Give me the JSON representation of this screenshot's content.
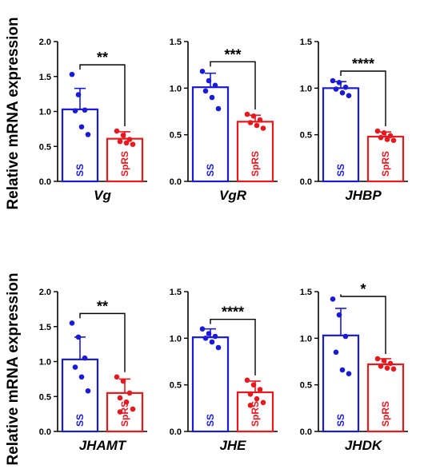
{
  "figure": {
    "ylabel": "Relative mRNA expression",
    "group_colors": {
      "SS": "#1a1adb",
      "SpRS": "#e8181f"
    }
  },
  "chart_data": [
    {
      "type": "bar",
      "title": "Vg",
      "ylim": [
        0,
        2.0
      ],
      "yticks": [
        0.0,
        0.5,
        1.0,
        1.5,
        2.0
      ],
      "ytick_labels": [
        "0.0",
        "0.5",
        "1.0",
        "1.5",
        "2.0"
      ],
      "categories": [
        "SS",
        "SpRS"
      ],
      "values": [
        1.03,
        0.61
      ],
      "errors": [
        0.3,
        0.1
      ],
      "points": [
        [
          1.53,
          1.24,
          1.02,
          1.01,
          0.78,
          0.67
        ],
        [
          0.72,
          0.66,
          0.6,
          0.57,
          0.55,
          0.53
        ]
      ],
      "significance": "**"
    },
    {
      "type": "bar",
      "title": "VgR",
      "ylim": [
        0,
        1.5
      ],
      "yticks": [
        0.0,
        0.5,
        1.0,
        1.5
      ],
      "ytick_labels": [
        "0.0",
        "0.5",
        "1.0",
        "1.5"
      ],
      "categories": [
        "SS",
        "SpRS"
      ],
      "values": [
        1.01,
        0.64
      ],
      "errors": [
        0.15,
        0.07
      ],
      "points": [
        [
          1.18,
          1.08,
          1.03,
          0.97,
          0.9,
          0.78
        ],
        [
          0.72,
          0.7,
          0.66,
          0.63,
          0.6,
          0.57
        ]
      ],
      "significance": "***"
    },
    {
      "type": "bar",
      "title": "JHBP",
      "ylim": [
        0,
        1.5
      ],
      "yticks": [
        0.0,
        0.5,
        1.0,
        1.5
      ],
      "ytick_labels": [
        "0.0",
        "0.5",
        "1.0",
        "1.5"
      ],
      "categories": [
        "SS",
        "SpRS"
      ],
      "values": [
        1.0,
        0.48
      ],
      "errors": [
        0.07,
        0.05
      ],
      "points": [
        [
          1.08,
          1.06,
          1.01,
          0.99,
          0.95,
          0.92
        ],
        [
          0.54,
          0.52,
          0.49,
          0.47,
          0.45,
          0.44
        ]
      ],
      "significance": "****"
    },
    {
      "type": "bar",
      "title": "JHAMT",
      "ylim": [
        0,
        2.0
      ],
      "yticks": [
        0.0,
        0.5,
        1.0,
        1.5,
        2.0
      ],
      "ytick_labels": [
        "0.0",
        "0.5",
        "1.0",
        "1.5",
        "2.0"
      ],
      "categories": [
        "SS",
        "SpRS"
      ],
      "values": [
        1.03,
        0.55
      ],
      "errors": [
        0.32,
        0.2
      ],
      "points": [
        [
          1.55,
          1.35,
          1.05,
          0.92,
          0.78,
          0.58
        ],
        [
          0.78,
          0.72,
          0.55,
          0.48,
          0.42,
          0.32,
          0.28
        ]
      ],
      "significance": "**"
    },
    {
      "type": "bar",
      "title": "JHE",
      "ylim": [
        0,
        1.5
      ],
      "yticks": [
        0.0,
        0.5,
        1.0,
        1.5
      ],
      "ytick_labels": [
        "0.0",
        "0.5",
        "1.0",
        "1.5"
      ],
      "categories": [
        "SS",
        "SpRS"
      ],
      "values": [
        1.01,
        0.42
      ],
      "errors": [
        0.09,
        0.12
      ],
      "points": [
        [
          1.1,
          1.05,
          1.02,
          1.0,
          0.96,
          0.9
        ],
        [
          0.55,
          0.5,
          0.45,
          0.4,
          0.35,
          0.31,
          0.28
        ]
      ],
      "significance": "****"
    },
    {
      "type": "bar",
      "title": "JHDK",
      "ylim": [
        0,
        1.5
      ],
      "yticks": [
        0.0,
        0.5,
        1.0,
        1.5
      ],
      "ytick_labels": [
        "0.0",
        "0.5",
        "1.0",
        "1.5"
      ],
      "categories": [
        "SS",
        "SpRS"
      ],
      "values": [
        1.03,
        0.72
      ],
      "errors": [
        0.29,
        0.06
      ],
      "points": [
        [
          1.42,
          1.25,
          1.02,
          0.85,
          0.66,
          0.62
        ],
        [
          0.78,
          0.76,
          0.73,
          0.7,
          0.68,
          0.67
        ]
      ],
      "significance": "*"
    }
  ]
}
